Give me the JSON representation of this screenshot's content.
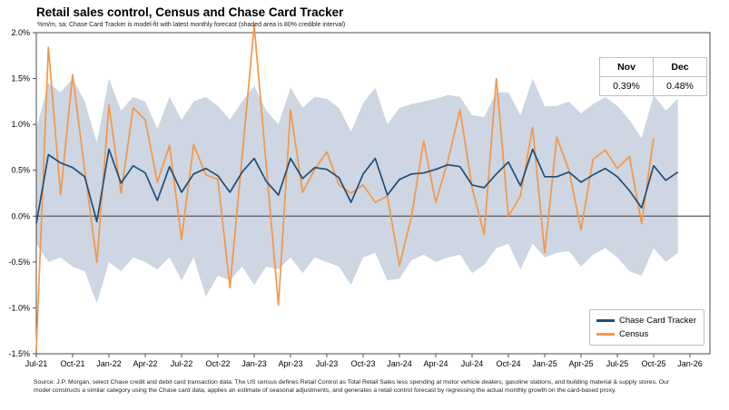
{
  "title": "Retail sales control, Census and Chase Card Tracker",
  "subtitle": "%m/m, sa; Chase Card Tracker is model-fit with latest monthly forecast (shaded area is 80% credible interval)",
  "forecast_table": {
    "columns": [
      "Nov",
      "Dec"
    ],
    "values": [
      "0.39%",
      "0.48%"
    ]
  },
  "legend": {
    "items": [
      {
        "label": "Chase Card Tracker",
        "color": "#1f4e79"
      },
      {
        "label": "Census",
        "color": "#f79646"
      }
    ]
  },
  "footer": "Source: J.P. Morgan, select Chase credit and debit card transaction data. The US census defines Retail Control as Total Retail Sales less spending at motor vehicle dealers, gasoline stations, and building material & supply stores. Our model constructs a similar category using the Chase card data, applies an estimate of seasonal adjustments, and generates a retail control forecast by regressing the actual monthly growth on the card-based proxy.",
  "colors": {
    "tracker_line": "#1f4e79",
    "census_line": "#f79646",
    "credible_band": "#cdd6e2",
    "zero_line": "#55565a",
    "frame": "#4d4d4d",
    "tick_text": "#000000"
  },
  "chart_data": {
    "type": "line",
    "title": "Retail sales control, Census and Chase Card Tracker",
    "subtitle": "%m/m, sa; Chase Card Tracker is model-fit with latest monthly forecast (shaded area is 80% credible interval)",
    "ylabel": "%m/m, sa",
    "ylim": [
      -1.5,
      2.0
    ],
    "y_ticks": [
      2.0,
      1.5,
      1.0,
      0.5,
      0.0,
      -0.5,
      -1.0,
      -1.5
    ],
    "y_tick_labels": [
      "2.0%",
      "1.5%",
      "1.0%",
      "0.5%",
      "0.0%",
      "-0.5%",
      "-1.0%",
      "-1.5%"
    ],
    "x_tick_labels": [
      "Jul-21",
      "Oct-21",
      "Jan-22",
      "Apr-22",
      "Jul-22",
      "Oct-22",
      "Jan-23",
      "Apr-23",
      "Jul-23",
      "Oct-23",
      "Jan-24",
      "Apr-24",
      "Jul-24",
      "Oct-24",
      "Jan-25",
      "Apr-25",
      "Jul-25",
      "Oct-25",
      "Jan-26"
    ],
    "x_tick_step": 3,
    "x_axis_span_months": 54,
    "grid": false,
    "legend_position": "bottom-right",
    "months": [
      "Jul-21",
      "Aug-21",
      "Sep-21",
      "Oct-21",
      "Nov-21",
      "Dec-21",
      "Jan-22",
      "Feb-22",
      "Mar-22",
      "Apr-22",
      "May-22",
      "Jun-22",
      "Jul-22",
      "Aug-22",
      "Sep-22",
      "Oct-22",
      "Nov-22",
      "Dec-22",
      "Jan-23",
      "Feb-23",
      "Mar-23",
      "Apr-23",
      "May-23",
      "Jun-23",
      "Jul-23",
      "Aug-23",
      "Sep-23",
      "Oct-23",
      "Nov-23",
      "Dec-23",
      "Jan-24",
      "Feb-24",
      "Mar-24",
      "Apr-24",
      "May-24",
      "Jun-24",
      "Jul-24",
      "Aug-24",
      "Sep-24",
      "Oct-24",
      "Nov-24",
      "Dec-24",
      "Jan-25",
      "Feb-25",
      "Mar-25",
      "Apr-25",
      "May-25",
      "Jun-25",
      "Jul-25",
      "Aug-25",
      "Sep-25",
      "Oct-25",
      "Nov-25",
      "Dec-25"
    ],
    "series": [
      {
        "name": "Chase Card Tracker",
        "color": "#1f4e79",
        "values": [
          -0.08,
          0.67,
          0.58,
          0.53,
          0.43,
          -0.06,
          0.73,
          0.36,
          0.55,
          0.47,
          0.17,
          0.54,
          0.26,
          0.46,
          0.52,
          0.44,
          0.26,
          0.48,
          0.63,
          0.38,
          0.23,
          0.63,
          0.41,
          0.53,
          0.51,
          0.42,
          0.15,
          0.46,
          0.63,
          0.23,
          0.4,
          0.46,
          0.47,
          0.51,
          0.56,
          0.54,
          0.34,
          0.31,
          0.46,
          0.59,
          0.33,
          0.73,
          0.43,
          0.43,
          0.48,
          0.37,
          0.45,
          0.52,
          0.43,
          0.28,
          0.09,
          0.55,
          0.39,
          0.48
        ]
      },
      {
        "name": "Census",
        "color": "#f79646",
        "values": [
          -1.45,
          1.84,
          0.23,
          1.54,
          0.5,
          -0.5,
          1.21,
          0.25,
          1.18,
          1.05,
          0.37,
          0.77,
          -0.25,
          0.78,
          0.45,
          0.4,
          -0.78,
          0.65,
          2.08,
          0.55,
          -0.97,
          1.16,
          0.26,
          0.51,
          0.7,
          0.34,
          0.25,
          0.34,
          0.15,
          0.22,
          -0.54,
          0.0,
          0.82,
          0.15,
          0.6,
          1.16,
          0.31,
          -0.2,
          1.5,
          0.0,
          0.22,
          0.97,
          -0.4,
          0.86,
          0.5,
          -0.15,
          0.62,
          0.72,
          0.52,
          0.65,
          -0.08,
          0.85,
          null,
          null
        ]
      }
    ],
    "credible_band_80pct": {
      "upper": [
        0.95,
        1.45,
        1.35,
        1.5,
        1.25,
        0.8,
        1.5,
        1.15,
        1.3,
        1.25,
        0.95,
        1.3,
        1.05,
        1.25,
        1.3,
        1.2,
        1.05,
        1.25,
        1.42,
        1.15,
        1.0,
        1.4,
        1.18,
        1.3,
        1.28,
        1.18,
        0.92,
        1.23,
        1.4,
        1.0,
        1.18,
        1.22,
        1.25,
        1.28,
        1.32,
        1.3,
        1.1,
        1.08,
        1.35,
        1.35,
        1.1,
        1.5,
        1.2,
        1.2,
        1.25,
        1.12,
        1.22,
        1.3,
        1.2,
        1.05,
        0.85,
        1.32,
        1.15,
        1.28
      ],
      "lower": [
        -0.3,
        -0.5,
        -0.45,
        -0.55,
        -0.6,
        -0.95,
        -0.5,
        -0.6,
        -0.45,
        -0.5,
        -0.58,
        -0.45,
        -0.7,
        -0.45,
        -0.88,
        -0.65,
        -0.7,
        -0.55,
        -0.75,
        -0.55,
        -0.58,
        -0.45,
        -0.62,
        -0.45,
        -0.5,
        -0.55,
        -0.75,
        -0.45,
        -0.4,
        -0.7,
        -0.68,
        -0.48,
        -0.42,
        -0.5,
        -0.45,
        -0.42,
        -0.62,
        -0.53,
        -0.35,
        -0.3,
        -0.58,
        -0.3,
        -0.45,
        -0.4,
        -0.38,
        -0.55,
        -0.42,
        -0.35,
        -0.45,
        -0.6,
        -0.65,
        -0.35,
        -0.5,
        -0.4
      ]
    },
    "forecast_callout": {
      "Nov": "0.39%",
      "Dec": "0.48%"
    }
  }
}
